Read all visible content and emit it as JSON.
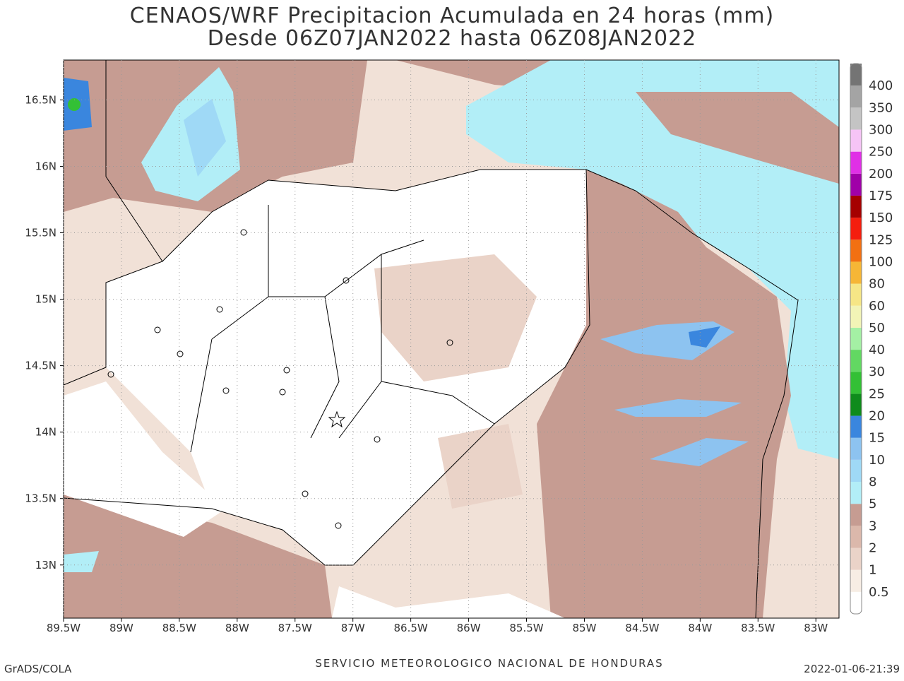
{
  "title": [
    "CENAOS/WRF Precipitacion Acumulada en 24 horas (mm)",
    "Desde 06Z07JAN2022 hasta 06Z08JAN2022"
  ],
  "map": {
    "lonlim": [
      -89.5,
      -82.8
    ],
    "latlim": [
      12.6,
      16.8
    ],
    "grid": true,
    "lat_ticks": [
      {
        "value": 16.5,
        "label": "16.5N"
      },
      {
        "value": 16,
        "label": "16N"
      },
      {
        "value": 15.5,
        "label": "15.5N"
      },
      {
        "value": 15,
        "label": "15N"
      },
      {
        "value": 14.5,
        "label": "14.5N"
      },
      {
        "value": 14,
        "label": "14N"
      },
      {
        "value": 13.5,
        "label": "13.5N"
      },
      {
        "value": 13,
        "label": "13N"
      }
    ],
    "lon_ticks": [
      {
        "value": -89.5,
        "label": "89.5W"
      },
      {
        "value": -89,
        "label": "89W"
      },
      {
        "value": -88.5,
        "label": "88.5W"
      },
      {
        "value": -88,
        "label": "88W"
      },
      {
        "value": -87.5,
        "label": "87.5W"
      },
      {
        "value": -87,
        "label": "87W"
      },
      {
        "value": -86.5,
        "label": "86.5W"
      },
      {
        "value": -86,
        "label": "86W"
      },
      {
        "value": -85.5,
        "label": "85.5W"
      },
      {
        "value": -85,
        "label": "85W"
      },
      {
        "value": -84.5,
        "label": "84.5W"
      },
      {
        "value": -84,
        "label": "84W"
      },
      {
        "value": -83.5,
        "label": "83.5W"
      },
      {
        "value": -83,
        "label": "83W"
      }
    ]
  },
  "colorbar": {
    "levels": [
      0.5,
      1,
      2,
      3,
      5,
      8,
      10,
      15,
      20,
      25,
      30,
      40,
      50,
      60,
      80,
      100,
      125,
      150,
      175,
      200,
      250,
      300,
      350,
      400
    ],
    "colors": [
      "#ffffff",
      "#f7ede4",
      "#ead3c8",
      "#dbb8ab",
      "#c69c92",
      "#b2eef7",
      "#9fd9f6",
      "#8dc3f0",
      "#3a86de",
      "#0f8b1c",
      "#33c035",
      "#62d862",
      "#a4f0a4",
      "#f2f4b6",
      "#f6e686",
      "#f6b636",
      "#f27012",
      "#f41e0e",
      "#a50000",
      "#a000a8",
      "#e030e6",
      "#f6c4f6",
      "#c4c4c4",
      "#a4a4a4",
      "#747474"
    ]
  },
  "footer": {
    "left": "GrADS/COLA",
    "center": "SERVICIO METEOROLOGICO NACIONAL DE HONDURAS",
    "right": "2022-01-06-21:39"
  }
}
